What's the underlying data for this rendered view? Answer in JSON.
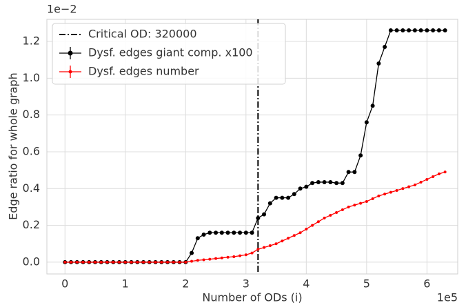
{
  "chart_data": {
    "type": "line",
    "x_label": "Number of ODs (i)",
    "y_label": "Edge ratio for whole graph",
    "x_offset_label": "1e5",
    "y_offset_label": "1e−2",
    "x": [
      0,
      0.1,
      0.2,
      0.3,
      0.4,
      0.5,
      0.6,
      0.7,
      0.8,
      0.9,
      1.0,
      1.1,
      1.2,
      1.3,
      1.4,
      1.5,
      1.6,
      1.7,
      1.8,
      1.9,
      2.0,
      2.1,
      2.2,
      2.3,
      2.4,
      2.5,
      2.6,
      2.7,
      2.8,
      2.9,
      3.0,
      3.1,
      3.2,
      3.3,
      3.4,
      3.5,
      3.6,
      3.7,
      3.8,
      3.9,
      4.0,
      4.1,
      4.2,
      4.3,
      4.4,
      4.5,
      4.6,
      4.7,
      4.8,
      4.9,
      5.0,
      5.1,
      5.2,
      5.3,
      5.4,
      5.5,
      5.6,
      5.7,
      5.8,
      5.9,
      6.0,
      6.1,
      6.2,
      6.3
    ],
    "series": [
      {
        "name": "Dysf. edges giant comp. x100",
        "color": "#000000",
        "values": [
          0,
          0,
          0,
          0,
          0,
          0,
          0,
          0,
          0,
          0,
          0,
          0,
          0,
          0,
          0,
          0,
          0,
          0,
          0,
          0,
          0,
          0.05,
          0.13,
          0.15,
          0.16,
          0.16,
          0.16,
          0.16,
          0.16,
          0.16,
          0.16,
          0.16,
          0.24,
          0.26,
          0.32,
          0.35,
          0.35,
          0.35,
          0.37,
          0.4,
          0.41,
          0.43,
          0.435,
          0.435,
          0.435,
          0.43,
          0.43,
          0.49,
          0.49,
          0.58,
          0.76,
          0.85,
          1.08,
          1.17,
          1.26,
          1.26,
          1.26,
          1.26,
          1.26,
          1.26,
          1.26,
          1.26,
          1.26,
          1.26
        ]
      },
      {
        "name": "Dysf. edges number",
        "color": "#ff0000",
        "values": [
          0,
          0,
          0,
          0,
          0,
          0,
          0,
          0,
          0,
          0,
          0,
          0,
          0,
          0,
          0,
          0,
          0,
          0,
          0,
          0,
          0,
          0.005,
          0.01,
          0.013,
          0.016,
          0.02,
          0.023,
          0.027,
          0.03,
          0.035,
          0.04,
          0.05,
          0.07,
          0.08,
          0.09,
          0.1,
          0.115,
          0.13,
          0.145,
          0.16,
          0.18,
          0.2,
          0.22,
          0.24,
          0.255,
          0.27,
          0.285,
          0.3,
          0.31,
          0.32,
          0.33,
          0.345,
          0.36,
          0.37,
          0.38,
          0.39,
          0.4,
          0.41,
          0.42,
          0.435,
          0.45,
          0.465,
          0.48,
          0.49
        ]
      }
    ],
    "critical_line": {
      "label": "Critical OD: 320000",
      "x": 3.2,
      "color": "#000000"
    },
    "xlim": [
      -0.3,
      6.51
    ],
    "ylim": [
      -0.064,
      1.32
    ],
    "xticks": [
      0,
      1,
      2,
      3,
      4,
      5,
      6
    ],
    "yticks": [
      {
        "value": 0,
        "label": "0.0"
      },
      {
        "value": 0.2,
        "label": "0.2"
      },
      {
        "value": 0.4,
        "label": "0.4"
      },
      {
        "value": 0.6,
        "label": "0.6"
      },
      {
        "value": 0.8,
        "label": "0.8"
      },
      {
        "value": 1.0,
        "label": "1.0"
      },
      {
        "value": 1.2,
        "label": "1.2"
      }
    ],
    "grid": true,
    "legend": "upper left"
  }
}
